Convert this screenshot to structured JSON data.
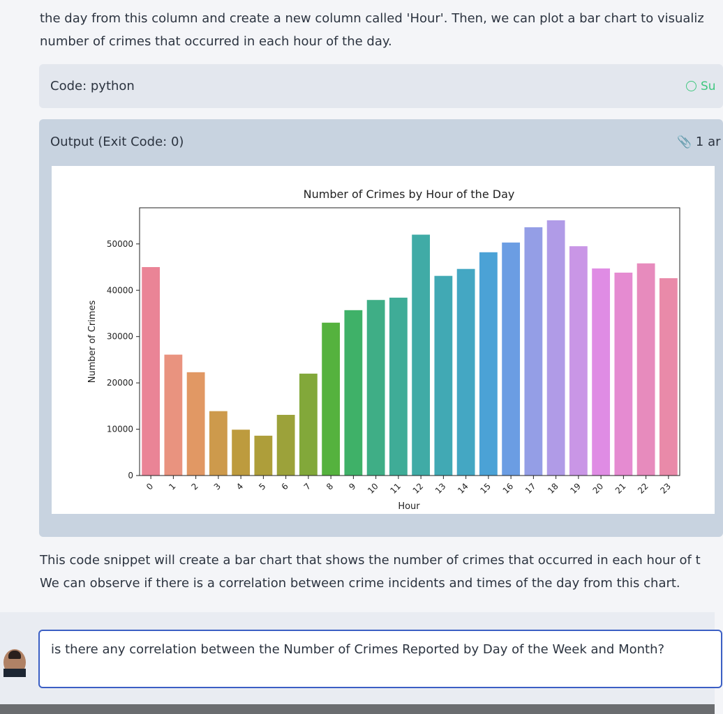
{
  "intro": {
    "lines": [
      "the day from this column and create a new column called 'Hour'. Then, we can plot a bar chart to visualiz",
      "number of crimes that occurred in each hour of the day."
    ]
  },
  "code_block": {
    "label": "Code: python",
    "status": "Su"
  },
  "output_block": {
    "label": "Output (Exit Code: 0)",
    "attachments": "1 ar"
  },
  "chart_data": {
    "type": "bar",
    "title": "Number of Crimes by Hour of the Day",
    "x_label": "Hour",
    "y_label": "Number of Crimes",
    "categories": [
      "0",
      "1",
      "2",
      "3",
      "4",
      "5",
      "6",
      "7",
      "8",
      "9",
      "10",
      "11",
      "12",
      "13",
      "14",
      "15",
      "16",
      "17",
      "18",
      "19",
      "20",
      "21",
      "22",
      "23"
    ],
    "values": [
      45000,
      26100,
      22300,
      13900,
      9900,
      8600,
      13100,
      22000,
      33000,
      35700,
      37900,
      38400,
      52000,
      43100,
      44600,
      48200,
      50300,
      53600,
      55100,
      49500,
      44700,
      43800,
      45800,
      42600
    ],
    "colors": [
      "#ea8496",
      "#e9937f",
      "#e19864",
      "#cd9a4c",
      "#bd9b3e",
      "#ae9e3a",
      "#9ca23a",
      "#82a83a",
      "#55b23e",
      "#3fb168",
      "#3fae86",
      "#3fac97",
      "#40aba6",
      "#41a9b4",
      "#44a7c3",
      "#4ba2d6",
      "#6b9de3",
      "#949ee6",
      "#b09be7",
      "#c996e6",
      "#df8ce4",
      "#e58bd1",
      "#e78bbd",
      "#e98aa9"
    ],
    "ylim": [
      0,
      57800
    ],
    "yticks": [
      0,
      10000,
      20000,
      30000,
      40000,
      50000
    ]
  },
  "summary": {
    "lines": [
      "This code snippet will create a bar chart that shows the number of crimes that occurred in each hour of t",
      "We can observe if there is a correlation between crime incidents and times of the day from this chart."
    ]
  },
  "prompt": {
    "text": "is there any correlation between the Number of Crimes Reported by Day of the Week and Month?"
  }
}
